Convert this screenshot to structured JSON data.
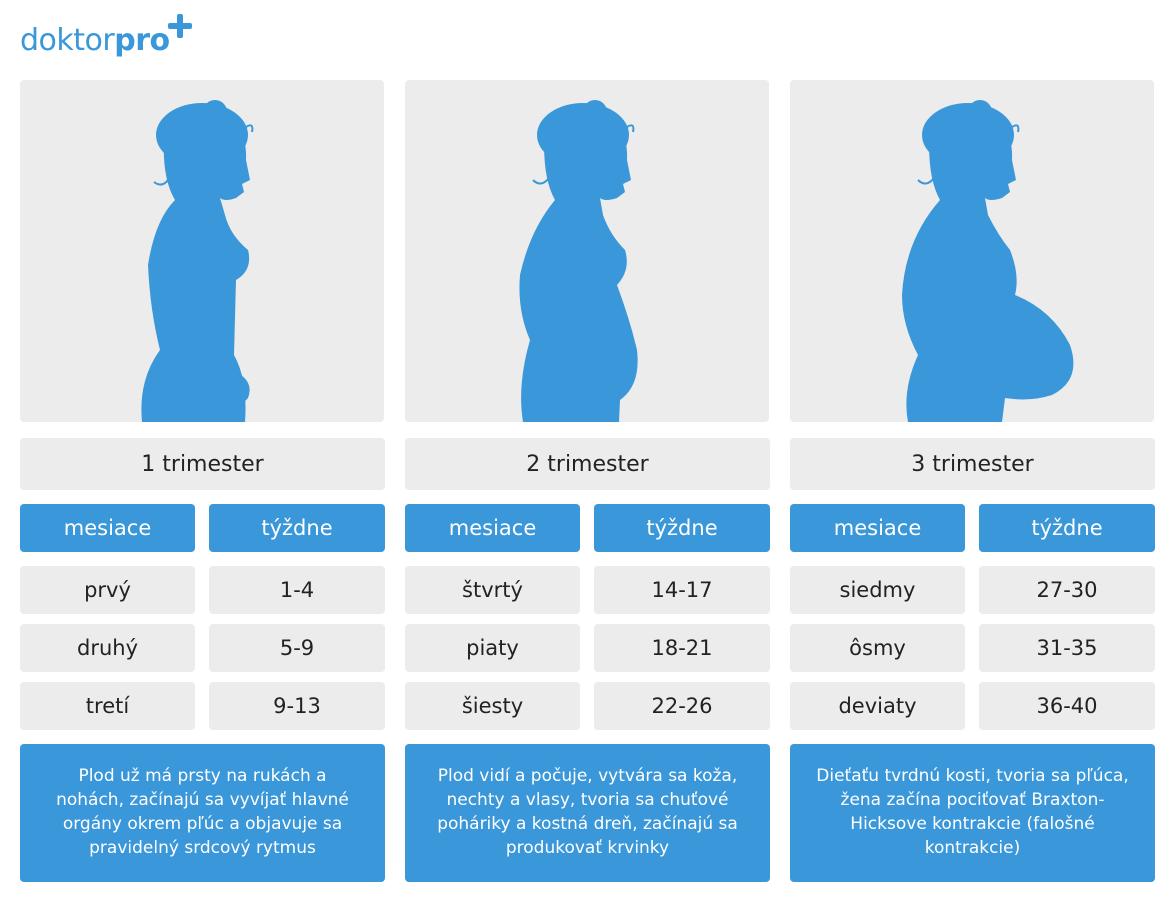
{
  "brand": {
    "part1": "doktor",
    "part2": "pro"
  },
  "colors": {
    "accent": "#3a97d9",
    "panel": "#ececec"
  },
  "columns": [
    {
      "trimester": "1 trimester",
      "months_label": "mesiace",
      "weeks_label": "týždne",
      "rows": [
        {
          "month": "prvý",
          "weeks": "1-4"
        },
        {
          "month": "druhý",
          "weeks": "5-9"
        },
        {
          "month": "tretí",
          "weeks": "9-13"
        }
      ],
      "description": "Plod už má prsty na rukách a nohách, začínajú sa vyvíjať hlavné orgány okrem pľúc a objavuje sa pravidelný srdcový rytmus"
    },
    {
      "trimester": "2 trimester",
      "months_label": "mesiace",
      "weeks_label": "týždne",
      "rows": [
        {
          "month": "štvrtý",
          "weeks": "14-17"
        },
        {
          "month": "piaty",
          "weeks": "18-21"
        },
        {
          "month": "šiesty",
          "weeks": "22-26"
        }
      ],
      "description": "Plod vidí a počuje, vytvára sa koža, nechty a vlasy, tvoria sa chuťové poháriky a kostná dreň, začínajú sa produkovať krvinky"
    },
    {
      "trimester": "3 trimester",
      "months_label": "mesiace",
      "weeks_label": "týždne",
      "rows": [
        {
          "month": "siedmy",
          "weeks": "27-30"
        },
        {
          "month": "ôsmy",
          "weeks": "31-35"
        },
        {
          "month": "deviaty",
          "weeks": "36-40"
        }
      ],
      "description": "Dieťaťu tvrdnú kosti, tvoria sa pľúca, žena začína pociťovať Braxton-Hicksove kontrakcie (falošné kontrakcie)"
    }
  ]
}
